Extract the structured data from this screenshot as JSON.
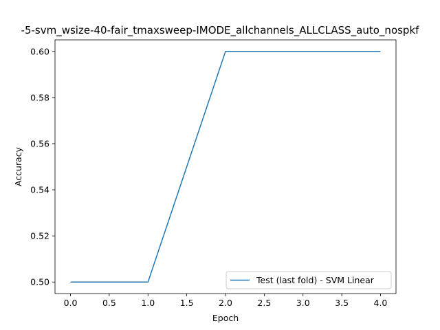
{
  "chart_data": {
    "type": "line",
    "title": "-5-svm_wsize-40-fair_tmaxsweep-IMODE_allchannels_ALLCLASS_auto_nospkf",
    "xlabel": "Epoch",
    "ylabel": "Accuracy",
    "xlim": [
      -0.2,
      4.2
    ],
    "ylim": [
      0.495,
      0.605
    ],
    "xticks": [
      0.0,
      0.5,
      1.0,
      1.5,
      2.0,
      2.5,
      3.0,
      3.5,
      4.0
    ],
    "xtick_labels": [
      "0.0",
      "0.5",
      "1.0",
      "1.5",
      "2.0",
      "2.5",
      "3.0",
      "3.5",
      "4.0"
    ],
    "yticks": [
      0.5,
      0.52,
      0.54,
      0.56,
      0.58,
      0.6
    ],
    "ytick_labels": [
      "0.50",
      "0.52",
      "0.54",
      "0.56",
      "0.58",
      "0.60"
    ],
    "grid": false,
    "legend_position": "lower-right",
    "series": [
      {
        "name": "Test (last fold) - SVM Linear",
        "color": "#1f77b4",
        "x": [
          0,
          1,
          2,
          3,
          4
        ],
        "y": [
          0.5,
          0.5,
          0.6,
          0.6,
          0.6
        ]
      }
    ]
  }
}
